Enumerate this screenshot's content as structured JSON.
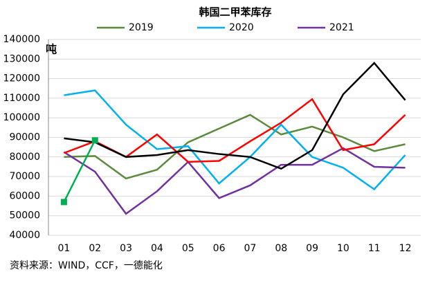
{
  "chart_data": {
    "type": "line",
    "title": "韩国二甲苯库存",
    "y_unit": "吨",
    "source": "资料来源：WIND，CCF，一德能化",
    "categories": [
      "01",
      "02",
      "03",
      "04",
      "05",
      "06",
      "07",
      "08",
      "09",
      "10",
      "11",
      "12"
    ],
    "series": [
      {
        "name": "2019",
        "color": "#5b8a3c",
        "values": [
          80000,
          80500,
          69000,
          73500,
          87500,
          94500,
          101500,
          91500,
          95500,
          90000,
          83000,
          86500
        ]
      },
      {
        "name": "2020",
        "color": "#00b0f0",
        "values": [
          111500,
          114000,
          96500,
          84000,
          85500,
          66500,
          80000,
          96500,
          80000,
          74500,
          63500,
          81000
        ]
      },
      {
        "name": "2021",
        "color": "#7030a0",
        "values": [
          82500,
          72500,
          51000,
          62500,
          77500,
          59000,
          65500,
          76000,
          76000,
          84500,
          75000,
          74500
        ]
      },
      {
        "color": "#ff0000",
        "values": [
          82000,
          88000,
          80000,
          91500,
          77500,
          78000,
          88000,
          97500,
          109500,
          83500,
          86500,
          101500
        ]
      },
      {
        "color": "#000000",
        "values": [
          89500,
          87500,
          80000,
          81000,
          83500,
          81500,
          80000,
          74000,
          83500,
          112000,
          128000,
          109000
        ]
      },
      {
        "color": "#00b050",
        "markers": true,
        "values": [
          57000,
          88500,
          null,
          null,
          null,
          null,
          null,
          null,
          null,
          null,
          null,
          null
        ]
      }
    ],
    "ylim": [
      40000,
      140000
    ],
    "yticks": [
      40000,
      50000,
      60000,
      70000,
      80000,
      90000,
      100000,
      110000,
      120000,
      130000,
      140000
    ],
    "grid": true
  }
}
